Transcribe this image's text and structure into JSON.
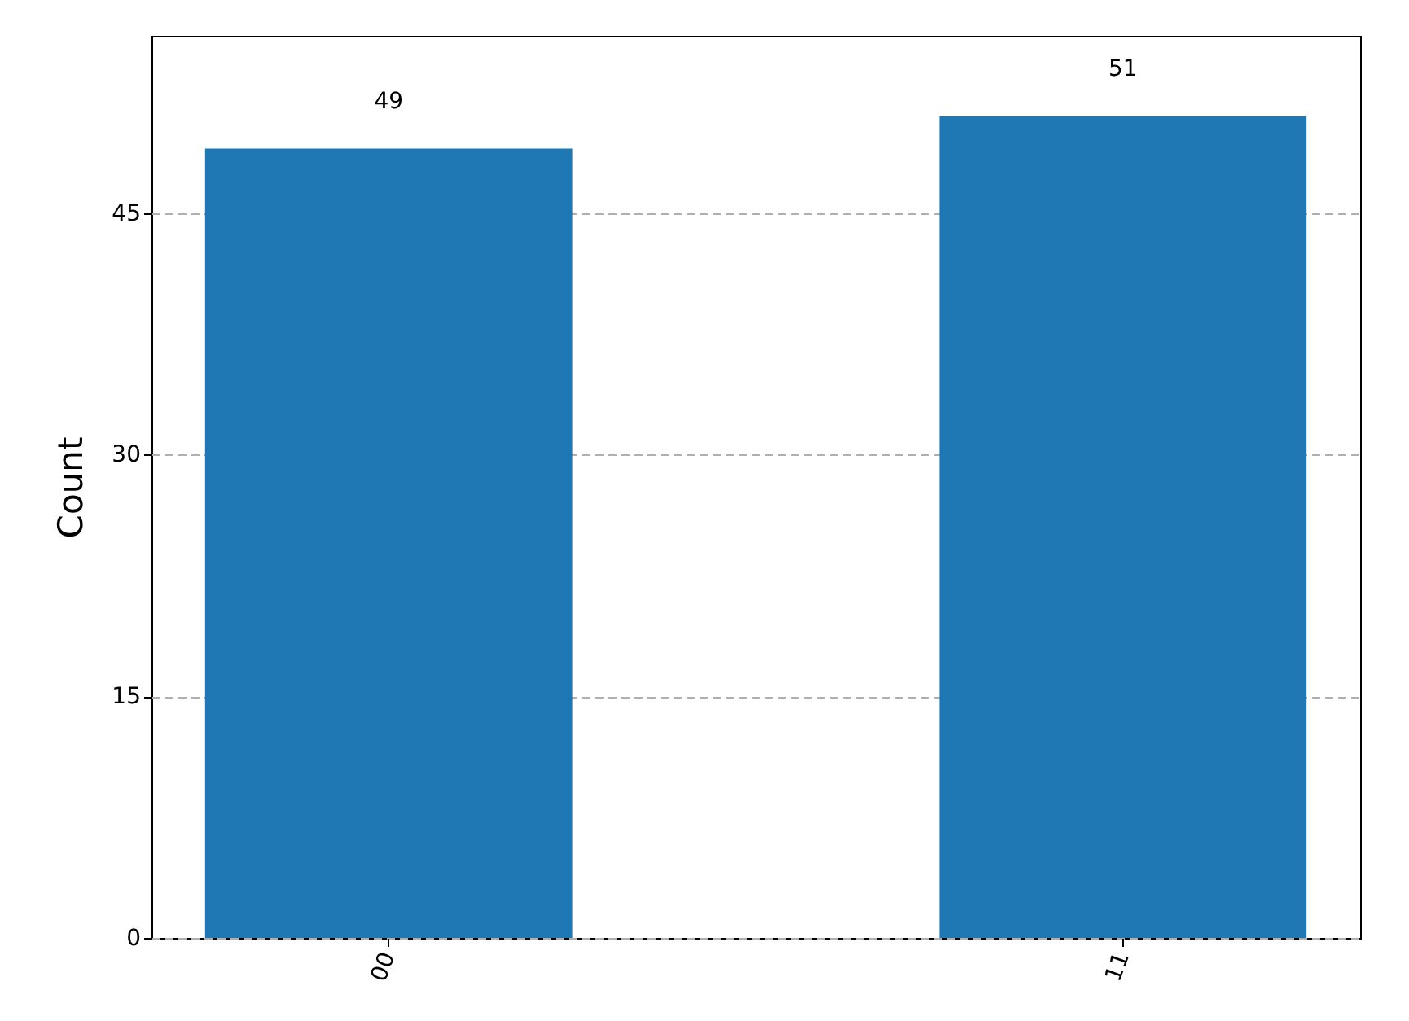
{
  "chart_data": {
    "type": "bar",
    "ylabel": "Count",
    "categories": [
      "00",
      "11"
    ],
    "values": [
      49,
      51
    ],
    "color": "#1f77b4",
    "ylim": [
      0,
      56
    ],
    "yticks": [
      0,
      15,
      30,
      45
    ],
    "grid": "y",
    "data_labels": true
  }
}
